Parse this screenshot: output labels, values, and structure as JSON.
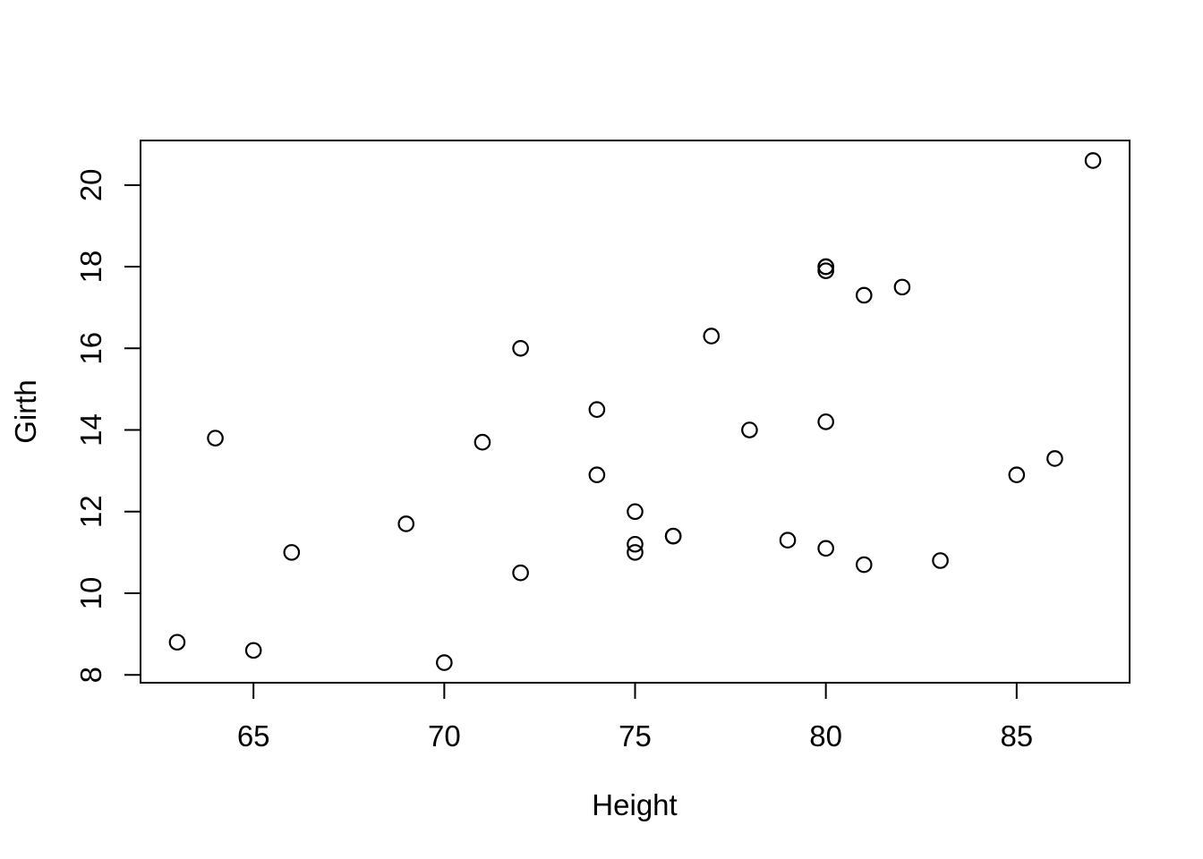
{
  "figure": {
    "background_color": "#ffffff",
    "foreground_color": "#000000"
  },
  "chart_data": {
    "type": "scatter",
    "title": "",
    "xlabel": "Height",
    "ylabel": "Girth",
    "x": [
      70,
      65,
      63,
      72,
      81,
      83,
      66,
      75,
      80,
      75,
      79,
      76,
      76,
      69,
      75,
      74,
      85,
      86,
      71,
      64,
      78,
      80,
      74,
      72,
      77,
      81,
      82,
      80,
      80,
      80,
      87
    ],
    "y": [
      8.3,
      8.6,
      8.8,
      10.5,
      10.7,
      10.8,
      11.0,
      11.0,
      11.1,
      11.2,
      11.3,
      11.4,
      11.4,
      11.7,
      12.0,
      12.9,
      12.9,
      13.3,
      13.7,
      13.8,
      14.0,
      14.2,
      14.5,
      16.0,
      16.3,
      17.3,
      17.5,
      17.9,
      18.0,
      18.0,
      20.6
    ],
    "x_ticks": [
      65,
      70,
      75,
      80,
      85
    ],
    "y_ticks": [
      8,
      10,
      12,
      14,
      16,
      18,
      20
    ],
    "xlim": [
      62.04,
      87.96
    ],
    "ylim": [
      7.808,
      21.092
    ],
    "marker": "open-circle",
    "marker_color": "#000000",
    "line_color": "#000000",
    "grid": false,
    "legend": null
  }
}
